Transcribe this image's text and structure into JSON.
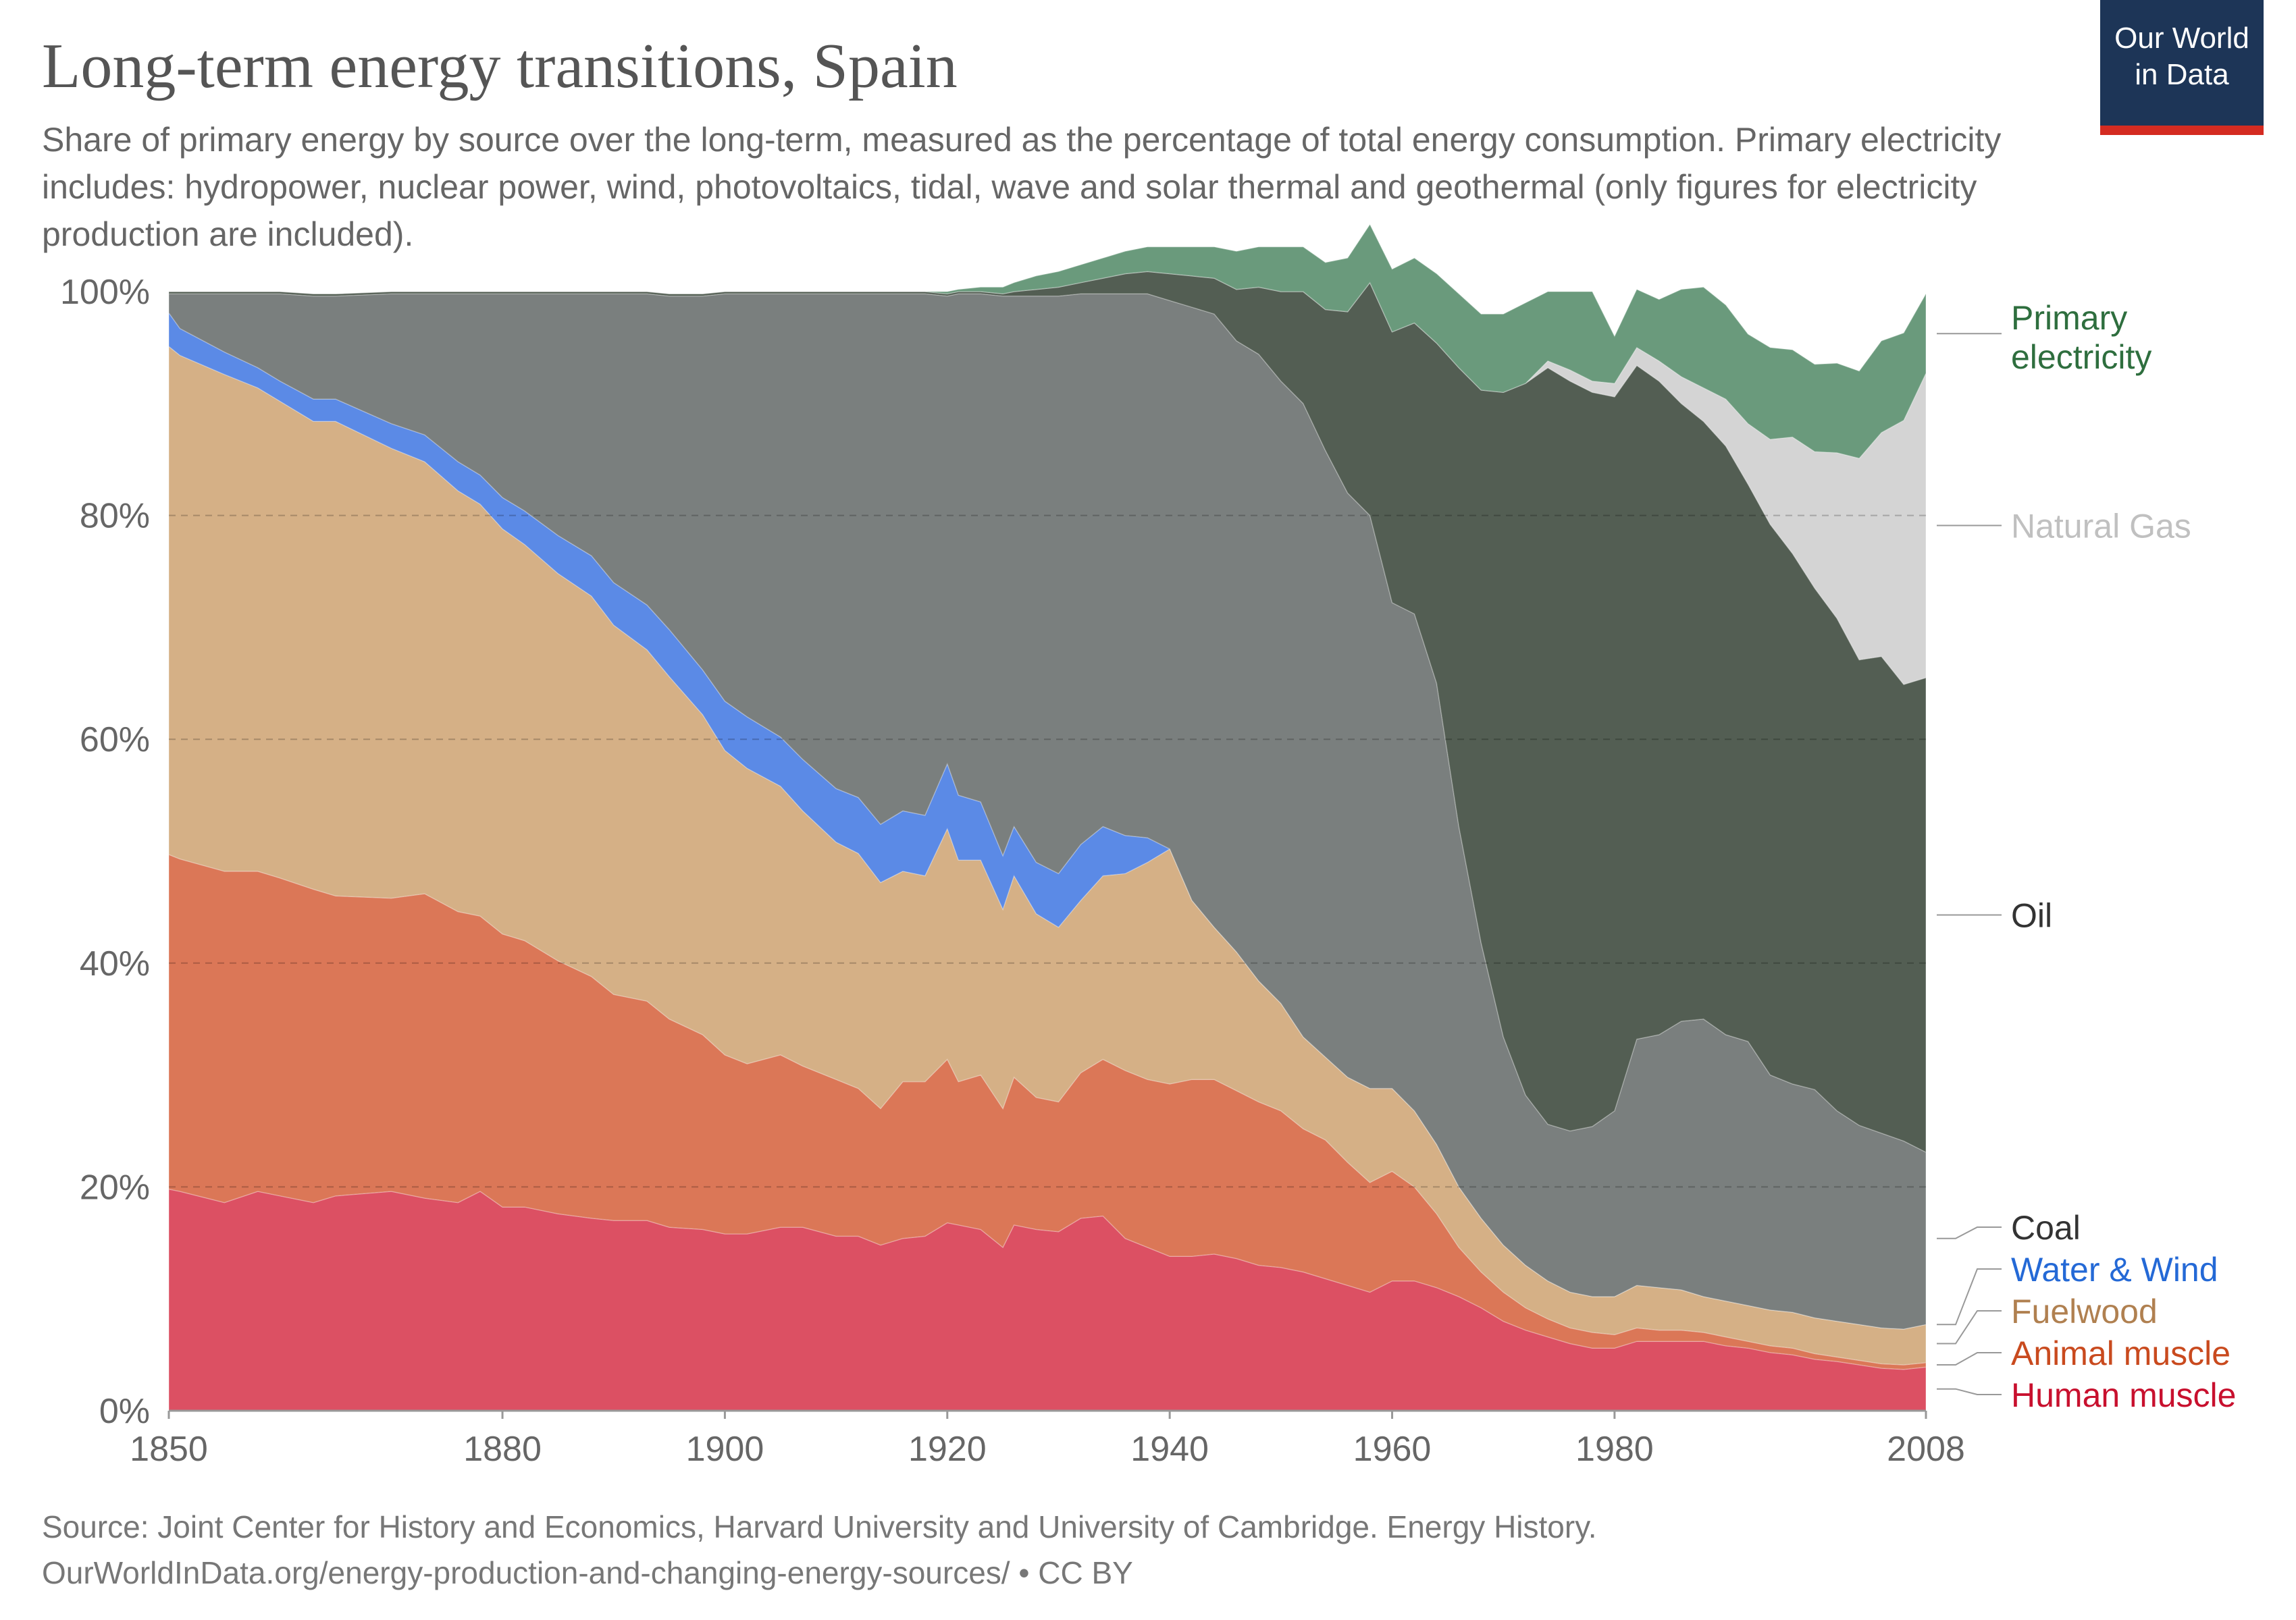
{
  "title": "Long-term energy transitions, Spain",
  "subtitle": "Share of primary energy by source over the long-term, measured as the percentage of total energy consumption. Primary electricity includes: hydropower, nuclear power, wind, photovoltaics, tidal, wave and solar thermal and geothermal (only figures for electricity production are included).",
  "logo": {
    "line1": "Our World",
    "line2": "in Data",
    "bg_color": "#1d3557",
    "accent_color": "#d42b21"
  },
  "source": {
    "line1": "Source: Joint Center for History and Economics, Harvard University and University of Cambridge. Energy History.",
    "line2": "OurWorldInData.org/energy-production-and-changing-energy-sources/ • CC BY"
  },
  "chart_data": {
    "type": "area",
    "stacked": true,
    "x_tick_labels": [
      "1850",
      "1880",
      "1900",
      "1920",
      "1940",
      "1960",
      "1980",
      "2008"
    ],
    "y_tick_labels": [
      "0%",
      "20%",
      "40%",
      "60%",
      "80%",
      "100%"
    ],
    "xlim": [
      1850,
      2008
    ],
    "ylim": [
      0,
      100
    ],
    "grid": "horizontal dashed",
    "legend": "right, labels at series ends",
    "x": [
      1850,
      1851,
      1855,
      1858,
      1860,
      1863,
      1865,
      1870,
      1873,
      1876,
      1878,
      1880,
      1882,
      1885,
      1888,
      1890,
      1893,
      1895,
      1898,
      1900,
      1902,
      1905,
      1907,
      1910,
      1912,
      1914,
      1916,
      1918,
      1920,
      1921,
      1923,
      1925,
      1926,
      1928,
      1930,
      1932,
      1934,
      1936,
      1938,
      1940,
      1942,
      1944,
      1946,
      1948,
      1950,
      1952,
      1954,
      1956,
      1958,
      1960,
      1962,
      1964,
      1966,
      1968,
      1970,
      1972,
      1974,
      1976,
      1978,
      1980,
      1982,
      1984,
      1986,
      1988,
      1990,
      1992,
      1994,
      1996,
      1998,
      2000,
      2002,
      2004,
      2006,
      2008
    ],
    "series": [
      {
        "name": "Human muscle",
        "color": "#dc5063",
        "values": [
          19.8,
          19.6,
          18.6,
          19.6,
          19.2,
          18.6,
          19.2,
          19.6,
          19.0,
          18.6,
          19.6,
          18.2,
          18.2,
          17.6,
          17.2,
          17.0,
          17.0,
          16.4,
          16.2,
          15.8,
          15.8,
          16.4,
          16.4,
          15.6,
          15.6,
          14.8,
          15.4,
          15.6,
          16.8,
          16.6,
          16.2,
          14.6,
          16.6,
          16.2,
          16.0,
          17.2,
          17.4,
          15.4,
          14.6,
          13.8,
          13.8,
          14.0,
          13.6,
          13.0,
          12.8,
          12.4,
          11.8,
          11.2,
          10.6,
          11.6,
          11.6,
          11.0,
          10.2,
          9.2,
          8.0,
          7.2,
          6.6,
          6.0,
          5.6,
          5.6,
          6.2,
          6.2,
          6.2,
          6.2,
          5.8,
          5.6,
          5.2,
          5.0,
          4.6,
          4.4,
          4.1,
          3.8,
          3.7,
          3.9
        ]
      },
      {
        "name": "Animal muscle",
        "color": "#db7757",
        "values": [
          29.9,
          29.7,
          29.6,
          28.6,
          28.4,
          28.0,
          26.8,
          26.2,
          27.2,
          26.0,
          24.6,
          24.4,
          23.8,
          22.6,
          21.6,
          20.2,
          19.6,
          18.6,
          17.4,
          16.0,
          15.2,
          15.4,
          14.4,
          14.0,
          13.2,
          12.2,
          14.0,
          13.8,
          14.6,
          12.8,
          13.8,
          12.4,
          13.2,
          11.8,
          11.6,
          13.0,
          14.0,
          15.0,
          15.0,
          15.4,
          15.8,
          15.6,
          15.0,
          14.6,
          14.0,
          12.8,
          12.4,
          11.0,
          9.8,
          9.8,
          8.4,
          6.6,
          4.4,
          3.2,
          2.6,
          2.0,
          1.6,
          1.4,
          1.4,
          1.2,
          1.2,
          1.0,
          1.0,
          0.8,
          0.8,
          0.6,
          0.6,
          0.6,
          0.5,
          0.4,
          0.4,
          0.4,
          0.4,
          0.4
        ]
      },
      {
        "name": "Fuelwood",
        "color": "#d5b086",
        "values": [
          45.4,
          45.0,
          44.4,
          43.2,
          42.6,
          41.8,
          42.4,
          40.2,
          38.6,
          37.6,
          36.8,
          36.2,
          35.4,
          34.6,
          34.0,
          33.0,
          31.4,
          30.6,
          28.6,
          27.2,
          26.4,
          24.0,
          22.8,
          21.2,
          21.0,
          20.2,
          18.8,
          18.4,
          20.6,
          19.8,
          19.2,
          17.8,
          18.0,
          16.4,
          15.6,
          15.4,
          16.4,
          17.6,
          19.4,
          21.0,
          16.0,
          13.6,
          12.4,
          10.8,
          9.6,
          8.2,
          7.4,
          7.6,
          8.4,
          7.4,
          6.8,
          6.2,
          5.4,
          4.8,
          4.2,
          3.8,
          3.4,
          3.2,
          3.2,
          3.4,
          3.8,
          3.8,
          3.6,
          3.2,
          3.2,
          3.2,
          3.2,
          3.2,
          3.2,
          3.2,
          3.2,
          3.2,
          3.2,
          3.4
        ]
      },
      {
        "name": "Water & Wind",
        "color": "#5b8ae6",
        "values": [
          3.0,
          2.4,
          2.0,
          1.8,
          1.8,
          2.0,
          2.0,
          2.2,
          2.4,
          2.6,
          2.6,
          2.8,
          3.0,
          3.4,
          3.6,
          3.8,
          4.0,
          4.2,
          4.0,
          4.4,
          4.6,
          4.4,
          4.6,
          4.8,
          5.0,
          5.2,
          5.4,
          5.4,
          5.8,
          5.8,
          5.2,
          4.8,
          4.4,
          4.6,
          4.8,
          5.0,
          4.4,
          3.4,
          2.2,
          0,
          0,
          0,
          0,
          0,
          0,
          0,
          0,
          0,
          0,
          0,
          0,
          0,
          0,
          0,
          0,
          0,
          0,
          0,
          0,
          0,
          0,
          0,
          0,
          0,
          0,
          0,
          0,
          0,
          0,
          0,
          0,
          0,
          0,
          0
        ]
      },
      {
        "name": "Coal",
        "color": "#7a7f7e",
        "values": [
          1.7,
          3.1,
          5.2,
          6.6,
          7.8,
          9.2,
          9.2,
          11.6,
          12.6,
          15.0,
          16.2,
          18.2,
          19.4,
          21.6,
          23.4,
          25.8,
          27.8,
          29.8,
          33.4,
          36.4,
          37.8,
          39.6,
          41.6,
          44.2,
          45.0,
          47.4,
          46.2,
          46.6,
          41.8,
          44.8,
          45.4,
          50.0,
          47.4,
          50.6,
          51.6,
          49.2,
          47.6,
          48.4,
          48.6,
          49.0,
          53.0,
          54.8,
          54.6,
          56.0,
          55.6,
          56.6,
          54.2,
          52.2,
          51.2,
          43.4,
          44.4,
          41.2,
          32.2,
          24.6,
          18.6,
          15.2,
          14.0,
          14.4,
          15.2,
          16.6,
          22.0,
          22.6,
          24.0,
          24.8,
          23.8,
          23.6,
          21.0,
          20.4,
          20.4,
          18.8,
          17.8,
          17.4,
          16.8,
          15.4
        ]
      },
      {
        "name": "Oil",
        "color": "#535e53",
        "values": [
          0.2,
          0.2,
          0.2,
          0.2,
          0.2,
          0.2,
          0.2,
          0.2,
          0.2,
          0.2,
          0.2,
          0.2,
          0.2,
          0.2,
          0.2,
          0.2,
          0.2,
          0.2,
          0.2,
          0.2,
          0.2,
          0.2,
          0.2,
          0.2,
          0.2,
          0.2,
          0.2,
          0.2,
          0.2,
          0.2,
          0.2,
          0.2,
          0.4,
          0.6,
          0.8,
          1.0,
          1.4,
          1.8,
          2.0,
          2.4,
          2.8,
          3.2,
          4.6,
          6.0,
          8.0,
          10.0,
          12.6,
          16.2,
          20.8,
          24.2,
          26.0,
          30.4,
          41.0,
          49.4,
          57.6,
          63.6,
          67.6,
          67.0,
          65.6,
          63.8,
          60.2,
          58.4,
          55.2,
          53.4,
          52.6,
          49.8,
          49.2,
          47.4,
          44.8,
          44.0,
          41.6,
          42.6,
          40.8,
          42.4
        ]
      },
      {
        "name": "Natural Gas",
        "color": "#d4d4d4",
        "values": [
          0,
          0,
          0,
          0,
          0,
          0,
          0,
          0,
          0,
          0,
          0,
          0,
          0,
          0,
          0,
          0,
          0,
          0,
          0,
          0,
          0,
          0,
          0,
          0,
          0,
          0,
          0,
          0,
          0,
          0,
          0,
          0,
          0,
          0,
          0,
          0,
          0,
          0,
          0,
          0,
          0,
          0,
          0,
          0,
          0,
          0,
          0,
          0,
          0,
          0,
          0,
          0,
          0,
          0,
          0,
          0,
          0.6,
          1.0,
          1.0,
          1.2,
          1.6,
          1.8,
          2.4,
          3.0,
          4.2,
          5.4,
          7.6,
          10.4,
          12.2,
          14.8,
          18.0,
          20.0,
          23.6,
          27.2
        ]
      },
      {
        "name": "Primary electricity",
        "color": "#6a9a7c",
        "values": [
          0,
          0,
          0,
          0,
          0,
          0,
          0,
          0,
          0,
          0,
          0,
          0,
          0,
          0,
          0,
          0,
          0,
          0,
          0,
          0,
          0,
          0,
          0,
          0,
          0,
          0,
          0,
          0,
          0.2,
          0.2,
          0.4,
          0.6,
          0.8,
          1.2,
          1.4,
          1.6,
          1.8,
          2.0,
          2.2,
          2.4,
          2.6,
          2.8,
          3.4,
          3.6,
          4.0,
          4.0,
          4.2,
          4.8,
          5.2,
          5.6,
          5.8,
          6.2,
          6.6,
          6.8,
          7.0,
          7.2,
          6.2,
          7.0,
          8.0,
          4.2,
          5.2,
          5.5,
          7.8,
          9.0,
          8.4,
          8.0,
          8.2,
          7.8,
          7.8,
          8.0,
          7.8,
          8.2,
          7.8,
          7.1
        ]
      }
    ],
    "label_order": [
      "Primary electricity",
      "Natural Gas",
      "Oil",
      "Coal",
      "Water & Wind",
      "Fuelwood",
      "Animal muscle",
      "Human muscle"
    ],
    "label_colors": {
      "Primary electricity": "#2e6e3e",
      "Natural Gas": "#c0c0c0",
      "Oil": "#333333",
      "Coal": "#333333",
      "Water & Wind": "#2469d6",
      "Fuelwood": "#b08050",
      "Animal muscle": "#c94a1e",
      "Human muscle": "#c8102e"
    }
  }
}
